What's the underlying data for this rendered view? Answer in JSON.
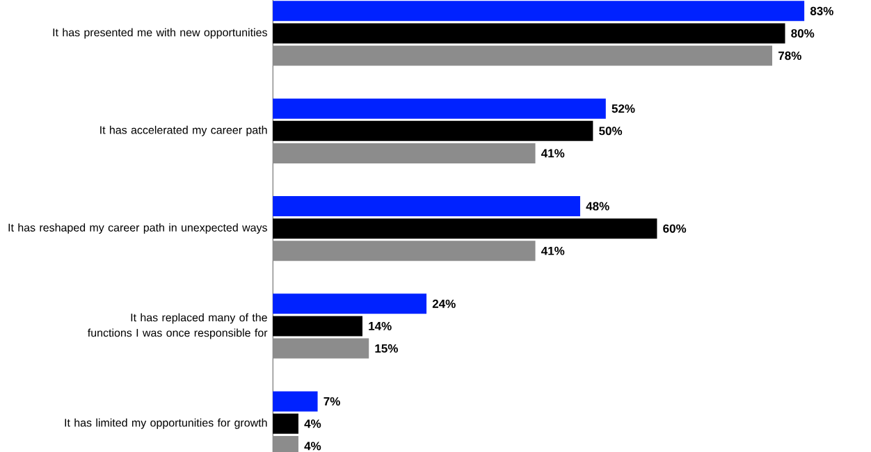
{
  "chart_data": {
    "type": "bar",
    "orientation": "horizontal",
    "categories": [
      "It has presented me with new opportunities",
      "It has accelerated my career path",
      "It has reshaped my career path in unexpected ways",
      "It has replaced many of the functions I was once responsible for",
      "It has limited my opportunities for growth"
    ],
    "series": [
      {
        "color": "#0022ff",
        "values": [
          83,
          52,
          48,
          24,
          7
        ],
        "value_labels": [
          "83%",
          "52%",
          "48%",
          "24%",
          "7%"
        ]
      },
      {
        "color": "#000000",
        "values": [
          80,
          50,
          60,
          14,
          4
        ],
        "value_labels": [
          "80%",
          "50%",
          "60%",
          "14%",
          "4%"
        ]
      },
      {
        "color": "#8c8c8c",
        "values": [
          78,
          41,
          41,
          15,
          4
        ],
        "value_labels": [
          "78%",
          "41%",
          "41%",
          "15%",
          "4%"
        ]
      }
    ]
  }
}
